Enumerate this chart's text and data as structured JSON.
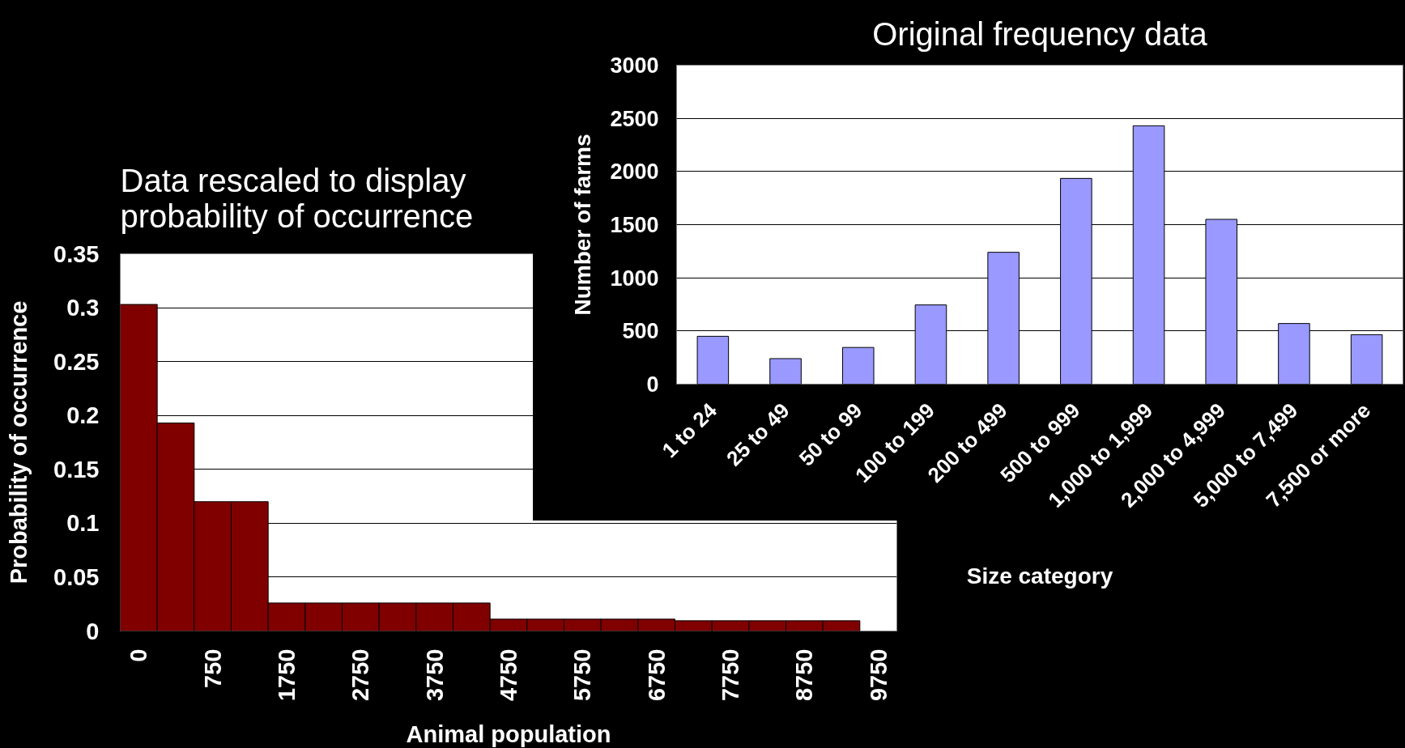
{
  "chart_data": [
    {
      "type": "bar",
      "title": "Data rescaled to display probability of occurrence",
      "xlabel": "Animal population",
      "ylabel": "Probability of occurrence",
      "categories": [
        "0",
        null,
        "750",
        null,
        "1750",
        null,
        "2750",
        null,
        "3750",
        null,
        "4750",
        null,
        "5750",
        null,
        "6750",
        null,
        "7750",
        null,
        "8750",
        null,
        "9750"
      ],
      "values": [
        0.303,
        0.193,
        0.12,
        0.12,
        0.026,
        0.026,
        0.026,
        0.026,
        0.026,
        0.026,
        0.011,
        0.011,
        0.011,
        0.011,
        0.011,
        0.0095,
        0.0095,
        0.0095,
        0.0095,
        0.0095,
        null
      ],
      "color": "#800000",
      "ylim": [
        0,
        0.35
      ],
      "yticks": [
        0,
        0.05,
        0.1,
        0.15,
        0.2,
        0.25,
        0.3,
        0.35
      ],
      "grid": "y"
    },
    {
      "type": "bar",
      "title": "Original frequency data",
      "xlabel": "Size category",
      "ylabel": "Number of farms",
      "categories": [
        "1 to 24",
        "25 to 49",
        "50 to 99",
        "100 to 199",
        "200 to 499",
        "500 to 999",
        "1,000 to 1,999",
        "2,000 to 4,999",
        "5,000 to 7,499",
        "7,500 or more"
      ],
      "values": [
        450,
        240,
        345,
        745,
        1240,
        1935,
        2430,
        1550,
        570,
        465
      ],
      "color": "#9999ff",
      "ylim": [
        0,
        3000
      ],
      "yticks": [
        0,
        500,
        1000,
        1500,
        2000,
        2500,
        3000
      ],
      "grid": "y"
    }
  ]
}
